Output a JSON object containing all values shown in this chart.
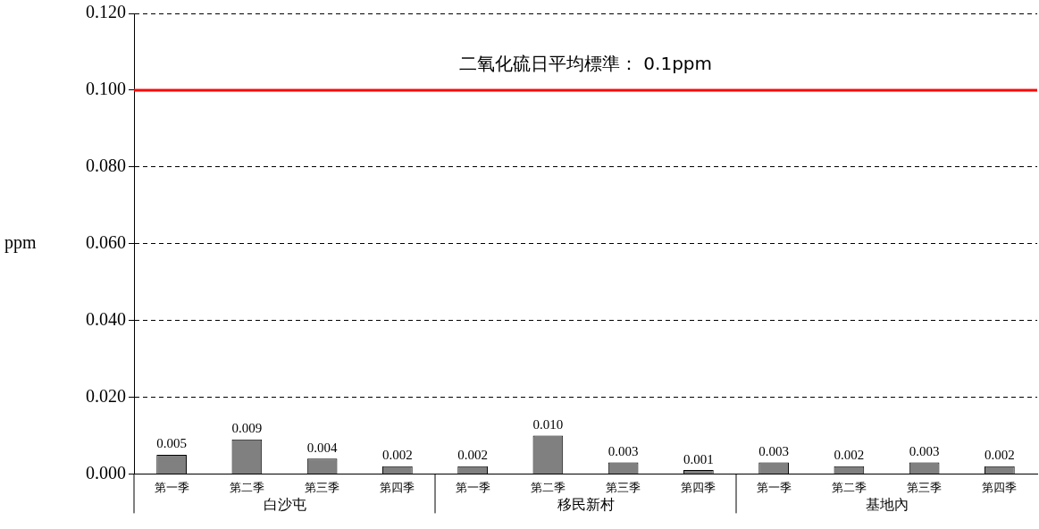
{
  "chart_data": {
    "type": "bar",
    "ylabel": "ppm",
    "categories": [
      "第一季",
      "第二季",
      "第三季",
      "第四季",
      "第一季",
      "第二季",
      "第三季",
      "第四季",
      "第一季",
      "第二季",
      "第三季",
      "第四季"
    ],
    "values": [
      0.005,
      0.009,
      0.004,
      0.002,
      0.002,
      0.01,
      0.003,
      0.001,
      0.003,
      0.002,
      0.003,
      0.002
    ],
    "color": "#808080",
    "value_labels": [
      "0.005",
      "0.009",
      "0.004",
      "0.002",
      "0.002",
      "0.010",
      "0.003",
      "0.001",
      "0.003",
      "0.002",
      "0.003",
      "0.002"
    ],
    "ylim": [
      0,
      0.12
    ],
    "yticks": [
      {
        "value": 0,
        "label": "0.000"
      },
      {
        "value": 0.02,
        "label": "0.020"
      },
      {
        "value": 0.04,
        "label": "0.040"
      },
      {
        "value": 0.06,
        "label": "0.060"
      },
      {
        "value": 0.08,
        "label": "0.080"
      },
      {
        "value": 0.1,
        "label": "0.100"
      },
      {
        "value": 0.12,
        "label": "0.120"
      }
    ],
    "grid": "y",
    "ref_lines": [
      {
        "axis": "y",
        "value": 0.1,
        "label": "二氧化硫日平均標準： 0.1ppm",
        "color": "#ff0000"
      }
    ],
    "annotations": [
      "白沙屯",
      "移民新村",
      "基地內"
    ],
    "legend": false
  }
}
